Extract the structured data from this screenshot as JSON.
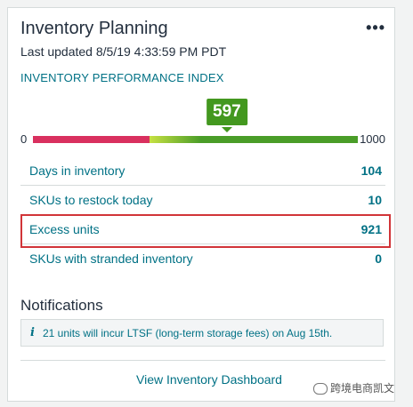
{
  "card": {
    "title": "Inventory Planning",
    "menu_icon": "more-options-icon",
    "updated": "Last updated 8/5/19 4:33:59 PM PDT"
  },
  "ipi": {
    "label": "INVENTORY PERFORMANCE INDEX",
    "score": "597",
    "score_value": 597,
    "min": "0",
    "max": "1000",
    "min_value": 0,
    "max_value": 1000,
    "colors": {
      "low": "#d9305f",
      "mid": "#c6e042",
      "high": "#4a9d28",
      "bubble": "#43981f"
    }
  },
  "metrics": [
    {
      "label": "Days in inventory",
      "value": "104"
    },
    {
      "label": "SKUs to restock today",
      "value": "10"
    },
    {
      "label": "Excess units",
      "value": "921"
    },
    {
      "label": "SKUs with stranded inventory",
      "value": "0"
    }
  ],
  "notifications": {
    "title": "Notifications",
    "icon": "info-icon",
    "icon_glyph": "i",
    "message": "21 units will incur LTSF (long-term storage fees) on Aug 15th."
  },
  "footer": {
    "link": "View Inventory Dashboard"
  },
  "watermark": {
    "text": "跨境电商凯文"
  }
}
